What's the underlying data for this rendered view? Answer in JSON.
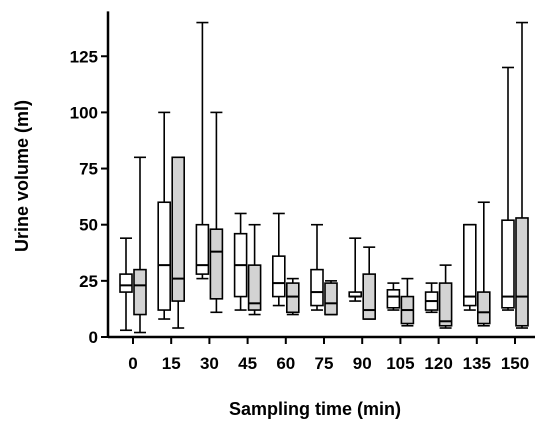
{
  "chart_data": {
    "type": "boxplot",
    "xlabel": "Sampling time (min)",
    "ylabel": "Urine volume (ml)",
    "ylim": [
      0,
      145
    ],
    "yticks": [
      0,
      25,
      50,
      75,
      100,
      125
    ],
    "categories": [
      "0",
      "15",
      "30",
      "45",
      "60",
      "75",
      "90",
      "105",
      "120",
      "135",
      "150"
    ],
    "grid": false,
    "legend": "none",
    "series": [
      {
        "color": "#ffffff",
        "boxes": [
          {
            "min": 3,
            "q1": 20,
            "median": 23,
            "q3": 28,
            "max": 44
          },
          {
            "min": 8,
            "q1": 12,
            "median": 32,
            "q3": 60,
            "max": 100
          },
          {
            "min": 26,
            "q1": 28,
            "median": 32,
            "q3": 50,
            "max": 140
          },
          {
            "min": 12,
            "q1": 18,
            "median": 32,
            "q3": 46,
            "max": 55
          },
          {
            "min": 14,
            "q1": 18,
            "median": 24,
            "q3": 36,
            "max": 55
          },
          {
            "min": 12,
            "q1": 14,
            "median": 20,
            "q3": 30,
            "max": 50
          },
          {
            "min": 16,
            "q1": 18,
            "median": 18,
            "q3": 20,
            "max": 44
          },
          {
            "min": 12,
            "q1": 13,
            "median": 18,
            "q3": 21,
            "max": 24
          },
          {
            "min": 11,
            "q1": 12,
            "median": 16,
            "q3": 20,
            "max": 24
          },
          {
            "min": 12,
            "q1": 14,
            "median": 18,
            "q3": 50,
            "max": 50
          },
          {
            "min": 12,
            "q1": 13,
            "median": 18,
            "q3": 52,
            "max": 120
          }
        ]
      },
      {
        "color": "#d3d3d3",
        "boxes": [
          {
            "min": 2,
            "q1": 10,
            "median": 23,
            "q3": 30,
            "max": 80
          },
          {
            "min": 4,
            "q1": 16,
            "median": 26,
            "q3": 80,
            "max": 80
          },
          {
            "min": 11,
            "q1": 17,
            "median": 38,
            "q3": 48,
            "max": 100
          },
          {
            "min": 10,
            "q1": 12,
            "median": 15,
            "q3": 32,
            "max": 50
          },
          {
            "min": 10,
            "q1": 11,
            "median": 18,
            "q3": 24,
            "max": 26
          },
          {
            "min": 10,
            "q1": 10,
            "median": 15,
            "q3": 24,
            "max": 25
          },
          {
            "min": 8,
            "q1": 8,
            "median": 12,
            "q3": 28,
            "max": 40
          },
          {
            "min": 5,
            "q1": 6,
            "median": 12,
            "q3": 18,
            "max": 26
          },
          {
            "min": 4,
            "q1": 5,
            "median": 7,
            "q3": 24,
            "max": 32
          },
          {
            "min": 5,
            "q1": 6,
            "median": 11,
            "q3": 20,
            "max": 60
          },
          {
            "min": 4,
            "q1": 5,
            "median": 18,
            "q3": 53,
            "max": 140
          }
        ]
      }
    ]
  }
}
